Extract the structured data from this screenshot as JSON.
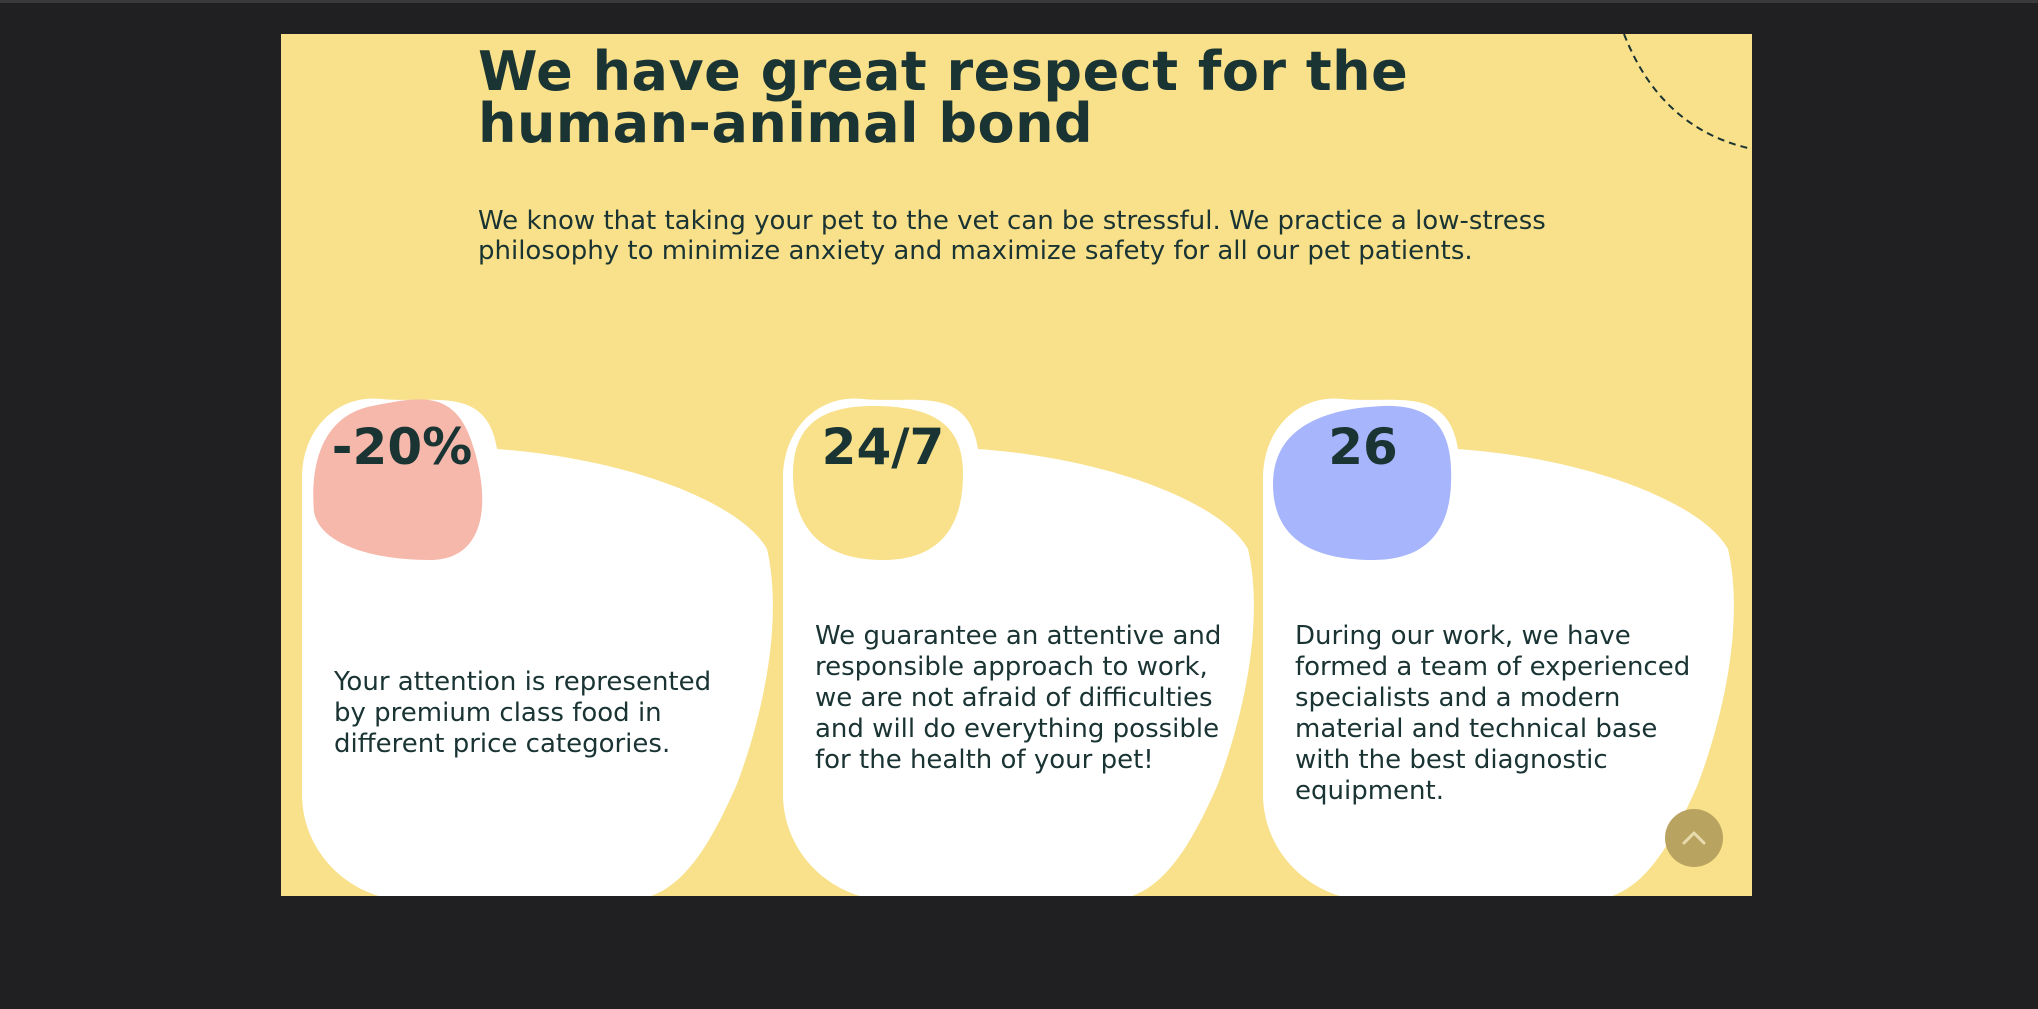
{
  "section": {
    "headline": "We have great respect for the human-animal bond",
    "lead": "We know that taking your pet to the vet can be stressful. We practice a low-stress philosophy to minimize anxiety and maximize safety for all our pet patients."
  },
  "cards": [
    {
      "stat": "-20%",
      "text": "Your attention is represented by premium class food in different price categories.",
      "blob_color": "#f6b8ab"
    },
    {
      "stat": "24/7",
      "text": "We guarantee an attentive and responsible approach to work, we are not afraid of difficulties and will do everything possible for the health of your pet!",
      "blob_color": "#f8e18a"
    },
    {
      "stat": "26",
      "text": "During our work, we have formed a team of experienced specialists and a modern material and technical base with the best diagnostic equipment.",
      "blob_color": "#a6b5fc"
    }
  ],
  "scroll_top": {
    "icon": "chevron-up-icon"
  },
  "colors": {
    "page_background": "#202022",
    "panel_background": "#f8e18a",
    "text": "#1a3333",
    "card": "#ffffff",
    "scroll_button": "#b9a360"
  }
}
